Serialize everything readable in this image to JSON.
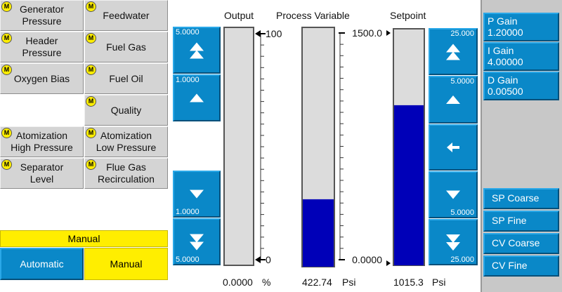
{
  "indicator": "M",
  "process_buttons": [
    {
      "lines": [
        "Generator",
        "Pressure"
      ]
    },
    {
      "lines": [
        "Feedwater"
      ]
    },
    {
      "lines": [
        "Header",
        "Pressure"
      ]
    },
    {
      "lines": [
        "Fuel Gas"
      ]
    },
    {
      "lines": [
        "Oxygen Bias"
      ]
    },
    {
      "lines": [
        "Fuel Oil"
      ]
    },
    {
      "lines": [
        "Quality"
      ]
    },
    {
      "lines": [
        "Atomization",
        "High Pressure"
      ]
    },
    {
      "lines": [
        "Atomization",
        "Low Pressure"
      ]
    },
    {
      "lines": [
        "Separator",
        "Level"
      ]
    },
    {
      "lines": [
        "Flue Gas",
        "Recirculation"
      ]
    }
  ],
  "mode": {
    "banner": "Manual",
    "automatic": "Automatic",
    "manual": "Manual"
  },
  "output": {
    "title": "Output",
    "max": 100,
    "min": 0,
    "value": 0,
    "value_label": "0.0000",
    "unit": "%",
    "steps": [
      "5.0000",
      "1.0000",
      "1.0000",
      "5.0000"
    ]
  },
  "process_variable": {
    "title": "Process Variable",
    "max": {
      "value": 1500,
      "label": "1500.0"
    },
    "min": {
      "value": 0,
      "label": "0.0000"
    },
    "value": 422.74,
    "unit": "Psi"
  },
  "setpoint": {
    "title": "Setpoint",
    "value": 1015.3,
    "unit": "Psi",
    "max": 1500,
    "min": 0,
    "steps": [
      "25.000",
      "5.0000",
      "5.0000",
      "25.000"
    ]
  },
  "gains": [
    {
      "name": "P Gain",
      "value": "1.20000"
    },
    {
      "name": "I Gain",
      "value": "4.00000"
    },
    {
      "name": "D Gain",
      "value": "0.00500"
    }
  ],
  "nav": [
    "SP Coarse",
    "SP Fine",
    "CV Coarse",
    "CV Fine"
  ]
}
